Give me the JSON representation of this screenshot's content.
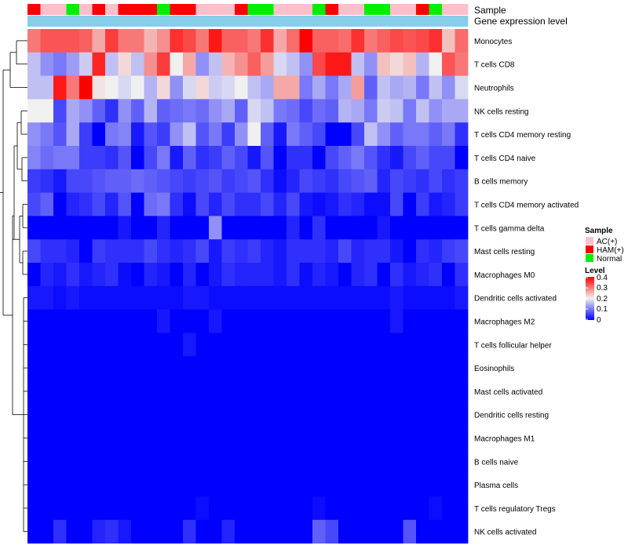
{
  "chart_data": {
    "type": "heatmap",
    "title": "",
    "annotation_labels": {
      "sample": "Sample",
      "expression": "Gene expression level"
    },
    "sample_annotation": [
      "HAM(+)",
      "AC(+)",
      "AC(+)",
      "Normal",
      "AC(+)",
      "HAM(+)",
      "AC(+)",
      "HAM(+)",
      "HAM(+)",
      "HAM(+)",
      "Normal",
      "HAM(+)",
      "HAM(+)",
      "AC(+)",
      "AC(+)",
      "AC(+)",
      "HAM(+)",
      "Normal",
      "Normal",
      "AC(+)",
      "AC(+)",
      "AC(+)",
      "Normal",
      "HAM(+)",
      "AC(+)",
      "AC(+)",
      "Normal",
      "Normal",
      "AC(+)",
      "AC(+)",
      "HAM(+)",
      "Normal",
      "AC(+)",
      "AC(+)"
    ],
    "rows": [
      "Monocytes",
      "T cells CD8",
      "Neutrophils",
      "NK cells resting",
      "T cells CD4 memory resting",
      "T cells CD4 naive",
      "B cells memory",
      "T cells CD4 memory activated",
      "T cells gamma delta",
      "Mast cells resting",
      "Macrophages M0",
      "Dendritic cells activated",
      "Macrophages M2",
      "T cells follicular helper",
      "Eosinophils",
      "Mast cells activated",
      "Dendritic cells resting",
      "Macrophages M1",
      "B cells naive",
      "Plasma cells",
      "T cells regulatory  Tregs",
      "NK cells activated"
    ],
    "values": [
      [
        0.3,
        0.33,
        0.33,
        0.33,
        0.32,
        0.26,
        0.35,
        0.3,
        0.3,
        0.25,
        0.28,
        0.36,
        0.34,
        0.3,
        0.38,
        0.32,
        0.32,
        0.3,
        0.36,
        0.26,
        0.31,
        0.4,
        0.32,
        0.32,
        0.31,
        0.36,
        0.3,
        0.32,
        0.34,
        0.33,
        0.34,
        0.36,
        0.24,
        0.31
      ],
      [
        0.16,
        0.12,
        0.1,
        0.13,
        0.17,
        0.37,
        0.16,
        0.22,
        0.16,
        0.28,
        0.35,
        0.2,
        0.26,
        0.12,
        0.16,
        0.25,
        0.28,
        0.32,
        0.27,
        0.18,
        0.16,
        0.12,
        0.34,
        0.38,
        0.38,
        0.16,
        0.12,
        0.24,
        0.22,
        0.24,
        0.15,
        0.2,
        0.33,
        0.3
      ],
      [
        0.16,
        0.16,
        0.38,
        0.3,
        0.4,
        0.21,
        0.2,
        0.18,
        0.2,
        0.15,
        0.22,
        0.12,
        0.18,
        0.22,
        0.17,
        0.18,
        0.2,
        0.16,
        0.14,
        0.26,
        0.26,
        0.1,
        0.14,
        0.1,
        0.14,
        0.27,
        0.08,
        0.16,
        0.14,
        0.15,
        0.1,
        0.16,
        0.12,
        0.18
      ],
      [
        0.2,
        0.2,
        0.06,
        0.14,
        0.12,
        0.08,
        0.04,
        0.12,
        0.08,
        0.15,
        0.08,
        0.09,
        0.1,
        0.09,
        0.12,
        0.14,
        0.08,
        0.18,
        0.16,
        0.1,
        0.09,
        0.06,
        0.09,
        0.08,
        0.15,
        0.14,
        0.1,
        0.17,
        0.16,
        0.1,
        0.16,
        0.12,
        0.14,
        0.14
      ],
      [
        0.12,
        0.1,
        0.07,
        0.14,
        0.05,
        0.0,
        0.1,
        0.11,
        0.02,
        0.07,
        0.05,
        0.12,
        0.16,
        0.07,
        0.1,
        0.05,
        0.12,
        0.2,
        0.08,
        0.02,
        0.1,
        0.08,
        0.06,
        0.0,
        0.0,
        0.06,
        0.16,
        0.12,
        0.08,
        0.1,
        0.1,
        0.08,
        0.1,
        0.04
      ],
      [
        0.11,
        0.09,
        0.1,
        0.1,
        0.05,
        0.05,
        0.04,
        0.07,
        0.0,
        0.06,
        0.1,
        0.02,
        0.08,
        0.04,
        0.05,
        0.08,
        0.06,
        0.02,
        0.07,
        0.0,
        0.04,
        0.04,
        0.0,
        0.06,
        0.08,
        0.1,
        0.07,
        0.04,
        0.02,
        0.06,
        0.08,
        0.06,
        0.06,
        0.0
      ],
      [
        0.05,
        0.04,
        0.02,
        0.06,
        0.06,
        0.07,
        0.08,
        0.08,
        0.09,
        0.08,
        0.07,
        0.06,
        0.05,
        0.06,
        0.07,
        0.05,
        0.06,
        0.07,
        0.04,
        0.01,
        0.03,
        0.06,
        0.05,
        0.04,
        0.06,
        0.07,
        0.08,
        0.03,
        0.06,
        0.05,
        0.04,
        0.06,
        0.04,
        0.05
      ],
      [
        0.06,
        0.08,
        0.0,
        0.03,
        0.04,
        0.06,
        0.03,
        0.07,
        0.0,
        0.09,
        0.1,
        0.04,
        0.01,
        0.06,
        0.03,
        0.06,
        0.04,
        0.04,
        0.06,
        0.03,
        0.06,
        0.02,
        0.01,
        0.02,
        0.04,
        0.03,
        0.01,
        0.01,
        0.06,
        0.0,
        0.05,
        0.02,
        0.03,
        0.05
      ],
      [
        0.0,
        0.0,
        0.0,
        0.0,
        0.0,
        0.0,
        0.0,
        0.02,
        0.0,
        0.0,
        0.03,
        0.0,
        0.0,
        0.0,
        0.12,
        0.0,
        0.0,
        0.0,
        0.0,
        0.0,
        0.03,
        0.0,
        0.04,
        0.0,
        0.0,
        0.0,
        0.0,
        0.02,
        0.0,
        0.0,
        0.0,
        0.0,
        0.0,
        0.0
      ],
      [
        0.06,
        0.04,
        0.04,
        0.03,
        0.0,
        0.05,
        0.04,
        0.04,
        0.04,
        0.06,
        0.04,
        0.03,
        0.04,
        0.06,
        0.02,
        0.05,
        0.04,
        0.05,
        0.03,
        0.02,
        0.04,
        0.04,
        0.04,
        0.03,
        0.06,
        0.03,
        0.04,
        0.04,
        0.02,
        0.0,
        0.04,
        0.03,
        0.05,
        0.06
      ],
      [
        0.0,
        0.03,
        0.02,
        0.04,
        0.02,
        0.03,
        0.04,
        0.01,
        0.0,
        0.03,
        0.02,
        0.0,
        0.03,
        0.0,
        0.02,
        0.04,
        0.03,
        0.03,
        0.03,
        0.02,
        0.04,
        0.01,
        0.03,
        0.02,
        0.0,
        0.03,
        0.04,
        0.0,
        0.04,
        0.02,
        0.03,
        0.04,
        0.0,
        0.04
      ],
      [
        0.02,
        0.02,
        0.01,
        0.02,
        0.01,
        0.01,
        0.01,
        0.01,
        0.01,
        0.01,
        0.01,
        0.01,
        0.02,
        0.02,
        0.01,
        0.01,
        0.01,
        0.01,
        0.01,
        0.01,
        0.01,
        0.01,
        0.01,
        0.01,
        0.01,
        0.01,
        0.01,
        0.01,
        0.02,
        0.01,
        0.01,
        0.01,
        0.01,
        0.02
      ],
      [
        0.0,
        0.0,
        0.0,
        0.0,
        0.0,
        0.0,
        0.0,
        0.0,
        0.0,
        0.0,
        0.02,
        0.0,
        0.0,
        0.0,
        0.02,
        0.0,
        0.0,
        0.0,
        0.0,
        0.0,
        0.0,
        0.0,
        0.0,
        0.0,
        0.0,
        0.0,
        0.0,
        0.0,
        0.02,
        0.0,
        0.0,
        0.0,
        0.0,
        0.0
      ],
      [
        0.0,
        0.0,
        0.0,
        0.0,
        0.0,
        0.0,
        0.0,
        0.0,
        0.0,
        0.0,
        0.0,
        0.0,
        0.02,
        0.0,
        0.0,
        0.0,
        0.0,
        0.0,
        0.0,
        0.0,
        0.0,
        0.0,
        0.0,
        0.0,
        0.0,
        0.0,
        0.0,
        0.0,
        0.0,
        0.0,
        0.0,
        0.0,
        0.0,
        0.0
      ],
      [
        0.0,
        0.0,
        0.0,
        0.0,
        0.0,
        0.0,
        0.0,
        0.0,
        0.0,
        0.0,
        0.0,
        0.0,
        0.0,
        0.0,
        0.0,
        0.0,
        0.0,
        0.0,
        0.0,
        0.0,
        0.0,
        0.0,
        0.0,
        0.0,
        0.0,
        0.0,
        0.0,
        0.0,
        0.0,
        0.0,
        0.0,
        0.0,
        0.0,
        0.0
      ],
      [
        0.0,
        0.0,
        0.0,
        0.0,
        0.0,
        0.0,
        0.0,
        0.0,
        0.0,
        0.0,
        0.0,
        0.0,
        0.0,
        0.0,
        0.0,
        0.0,
        0.0,
        0.0,
        0.0,
        0.0,
        0.0,
        0.0,
        0.0,
        0.0,
        0.0,
        0.0,
        0.0,
        0.0,
        0.0,
        0.0,
        0.0,
        0.0,
        0.0,
        0.0
      ],
      [
        0.0,
        0.0,
        0.0,
        0.0,
        0.0,
        0.0,
        0.0,
        0.0,
        0.0,
        0.0,
        0.0,
        0.0,
        0.0,
        0.0,
        0.0,
        0.0,
        0.0,
        0.0,
        0.0,
        0.0,
        0.0,
        0.0,
        0.0,
        0.0,
        0.0,
        0.0,
        0.0,
        0.0,
        0.0,
        0.0,
        0.0,
        0.0,
        0.0,
        0.0
      ],
      [
        0.0,
        0.0,
        0.0,
        0.0,
        0.0,
        0.0,
        0.0,
        0.0,
        0.0,
        0.0,
        0.0,
        0.0,
        0.0,
        0.0,
        0.0,
        0.0,
        0.0,
        0.0,
        0.0,
        0.0,
        0.0,
        0.0,
        0.0,
        0.0,
        0.0,
        0.0,
        0.0,
        0.0,
        0.0,
        0.0,
        0.0,
        0.0,
        0.0,
        0.0
      ],
      [
        0.0,
        0.0,
        0.0,
        0.0,
        0.0,
        0.0,
        0.0,
        0.0,
        0.0,
        0.0,
        0.0,
        0.0,
        0.0,
        0.0,
        0.0,
        0.0,
        0.0,
        0.0,
        0.0,
        0.0,
        0.0,
        0.0,
        0.0,
        0.0,
        0.0,
        0.0,
        0.0,
        0.0,
        0.0,
        0.0,
        0.0,
        0.0,
        0.0,
        0.0
      ],
      [
        0.0,
        0.0,
        0.0,
        0.0,
        0.0,
        0.0,
        0.0,
        0.0,
        0.0,
        0.0,
        0.0,
        0.0,
        0.0,
        0.0,
        0.0,
        0.0,
        0.0,
        0.0,
        0.0,
        0.0,
        0.0,
        0.0,
        0.0,
        0.0,
        0.0,
        0.0,
        0.0,
        0.0,
        0.0,
        0.0,
        0.0,
        0.0,
        0.0,
        0.0
      ],
      [
        0.0,
        0.0,
        0.0,
        0.0,
        0.0,
        0.0,
        0.0,
        0.0,
        0.0,
        0.0,
        0.0,
        0.0,
        0.0,
        0.01,
        0.0,
        0.0,
        0.0,
        0.0,
        0.0,
        0.0,
        0.0,
        0.0,
        0.01,
        0.0,
        0.0,
        0.0,
        0.0,
        0.0,
        0.0,
        0.0,
        0.0,
        0.01,
        0.0,
        0.0
      ],
      [
        0.0,
        0.0,
        0.04,
        0.0,
        0.0,
        0.03,
        0.04,
        0.02,
        0.0,
        0.0,
        0.0,
        0.0,
        0.04,
        0.0,
        0.0,
        0.03,
        0.0,
        0.0,
        0.0,
        0.0,
        0.0,
        0.0,
        0.08,
        0.06,
        0.0,
        0.0,
        0.0,
        0.0,
        0.0,
        0.07,
        0.0,
        0.0,
        0.0,
        0.0
      ]
    ],
    "color_scale": {
      "min": 0,
      "max": 0.4,
      "stops": [
        {
          "value": 0,
          "color": "#0000ff"
        },
        {
          "value": 0.2,
          "color": "#f0f0f0"
        },
        {
          "value": 0.4,
          "color": "#ff0000"
        }
      ]
    },
    "sample_colors": {
      "AC(+)": "#ffc0cb",
      "HAM(+)": "#ff0000",
      "Normal": "#00ee00"
    },
    "expression_color": "#87ceeb",
    "legend": {
      "sample_title": "Sample",
      "sample_entries": [
        "AC(+)",
        "HAM(+)",
        "Normal"
      ],
      "level_title": "Level",
      "level_ticks": [
        "0.4",
        "0.3",
        "0.2",
        "0.1",
        "0"
      ],
      "placement": "right"
    }
  }
}
